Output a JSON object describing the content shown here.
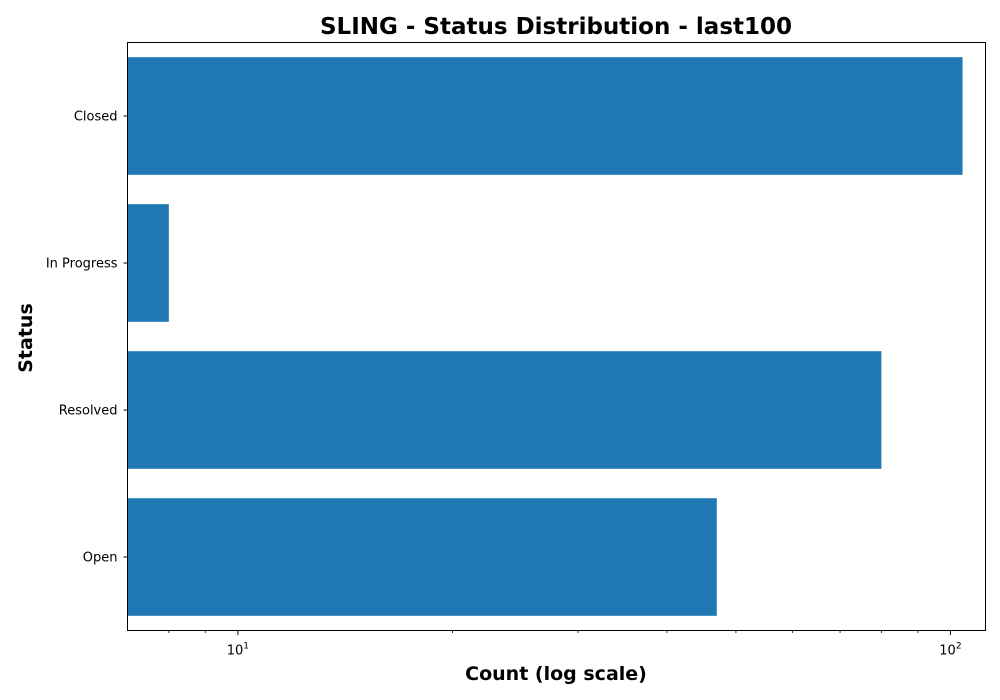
{
  "chart_data": {
    "type": "bar",
    "orientation": "horizontal",
    "title": "SLING - Status Distribution - last100",
    "xlabel": "Count (log scale)",
    "ylabel": "Status",
    "x_scale": "log",
    "xlim": [
      7.0,
      112.0
    ],
    "x_major_ticks": [
      {
        "value": 10,
        "base": "10",
        "exp": "1"
      },
      {
        "value": 100,
        "base": "10",
        "exp": "2"
      }
    ],
    "x_minor_ticks": [
      8,
      9,
      20,
      30,
      40,
      50,
      60,
      70,
      80,
      90
    ],
    "categories": [
      "Closed",
      "In Progress",
      "Resolved",
      "Open"
    ],
    "values": [
      104,
      8,
      80,
      47
    ],
    "bar_color": "#1f77b4",
    "grid": false,
    "legend": "none"
  }
}
